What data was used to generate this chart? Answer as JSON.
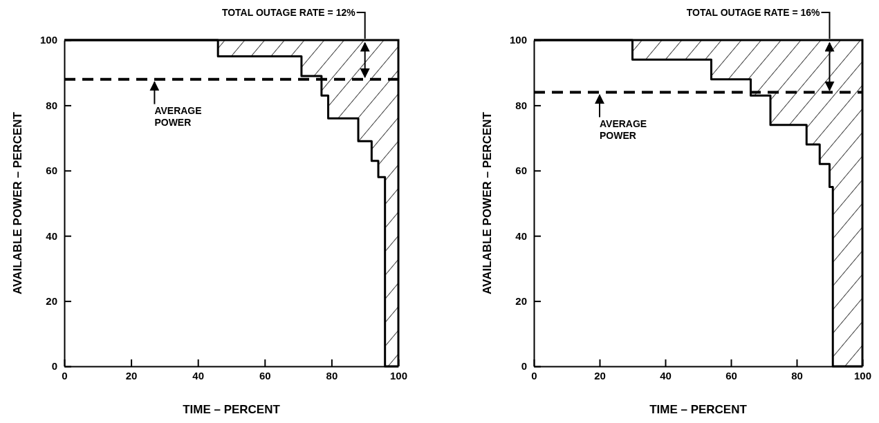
{
  "chart_data": [
    {
      "type": "step",
      "xlabel": "TIME – PERCENT",
      "ylabel": "AVAILABLE POWER – PERCENT",
      "xlim": [
        0,
        100
      ],
      "ylim": [
        0,
        100
      ],
      "xticks": [
        0,
        20,
        40,
        60,
        80,
        100
      ],
      "yticks": [
        0,
        20,
        40,
        60,
        80,
        100
      ],
      "grid": false,
      "line_style": "solid",
      "series": [
        {
          "color": "#000000",
          "x": [
            0,
            46,
            71,
            77,
            79,
            88,
            92,
            94,
            96,
            100
          ],
          "values": [
            100,
            95,
            89,
            83,
            76,
            69,
            63,
            58,
            0,
            0
          ],
          "lower": [
            100,
            95,
            89,
            83,
            76,
            69,
            63,
            58,
            0,
            0
          ],
          "upper": [
            100,
            100,
            100,
            100,
            100,
            100,
            100,
            100,
            100,
            100
          ]
        }
      ],
      "ref_lines": [
        {
          "axis": "y",
          "value": 88,
          "label": "AVERAGE POWER",
          "line_style": "dashed",
          "color": "#000000"
        }
      ],
      "annotations": [
        "TOTAL OUTAGE RATE = 12%"
      ]
    },
    {
      "type": "step",
      "xlabel": "TIME – PERCENT",
      "ylabel": "AVAILABLE POWER – PERCENT",
      "xlim": [
        0,
        100
      ],
      "ylim": [
        0,
        100
      ],
      "xticks": [
        0,
        20,
        40,
        60,
        80,
        100
      ],
      "yticks": [
        0,
        20,
        40,
        60,
        80,
        100
      ],
      "grid": false,
      "line_style": "solid",
      "series": [
        {
          "color": "#000000",
          "x": [
            0,
            30,
            54,
            66,
            72,
            83,
            87,
            90,
            91,
            100
          ],
          "values": [
            100,
            94,
            88,
            83,
            74,
            68,
            62,
            55,
            0,
            0
          ],
          "lower": [
            100,
            94,
            88,
            83,
            74,
            68,
            62,
            55,
            0,
            0
          ],
          "upper": [
            100,
            100,
            100,
            100,
            100,
            100,
            100,
            100,
            100,
            100
          ]
        }
      ],
      "ref_lines": [
        {
          "axis": "y",
          "value": 84,
          "label": "AVERAGE POWER",
          "line_style": "dashed",
          "color": "#000000"
        }
      ],
      "annotations": [
        "TOTAL OUTAGE RATE = 16%"
      ]
    }
  ]
}
